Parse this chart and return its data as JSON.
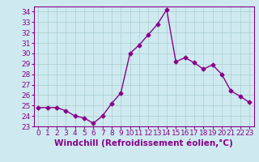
{
  "x": [
    0,
    1,
    2,
    3,
    4,
    5,
    6,
    7,
    8,
    9,
    10,
    11,
    12,
    13,
    14,
    15,
    16,
    17,
    18,
    19,
    20,
    21,
    22,
    23
  ],
  "y": [
    24.8,
    24.8,
    24.8,
    24.5,
    24.0,
    23.8,
    23.3,
    24.0,
    25.2,
    26.2,
    30.0,
    30.8,
    31.8,
    32.8,
    34.2,
    29.2,
    29.6,
    29.1,
    28.5,
    28.9,
    28.0,
    26.4,
    25.9,
    25.3
  ],
  "line_color": "#880088",
  "marker": "D",
  "markersize": 2.5,
  "linewidth": 1.0,
  "xlabel": "Windchill (Refroidissement éolien,°C)",
  "xlabel_fontsize": 7.5,
  "ylim": [
    23,
    34.5
  ],
  "xlim": [
    -0.5,
    23.5
  ],
  "yticks": [
    23,
    24,
    25,
    26,
    27,
    28,
    29,
    30,
    31,
    32,
    33,
    34
  ],
  "xticks": [
    0,
    1,
    2,
    3,
    4,
    5,
    6,
    7,
    8,
    9,
    10,
    11,
    12,
    13,
    14,
    15,
    16,
    17,
    18,
    19,
    20,
    21,
    22,
    23
  ],
  "bg_color": "#ceeaf0",
  "grid_color": "#aacccc",
  "tick_color": "#880088",
  "label_color": "#880088",
  "tick_fontsize": 6.5
}
